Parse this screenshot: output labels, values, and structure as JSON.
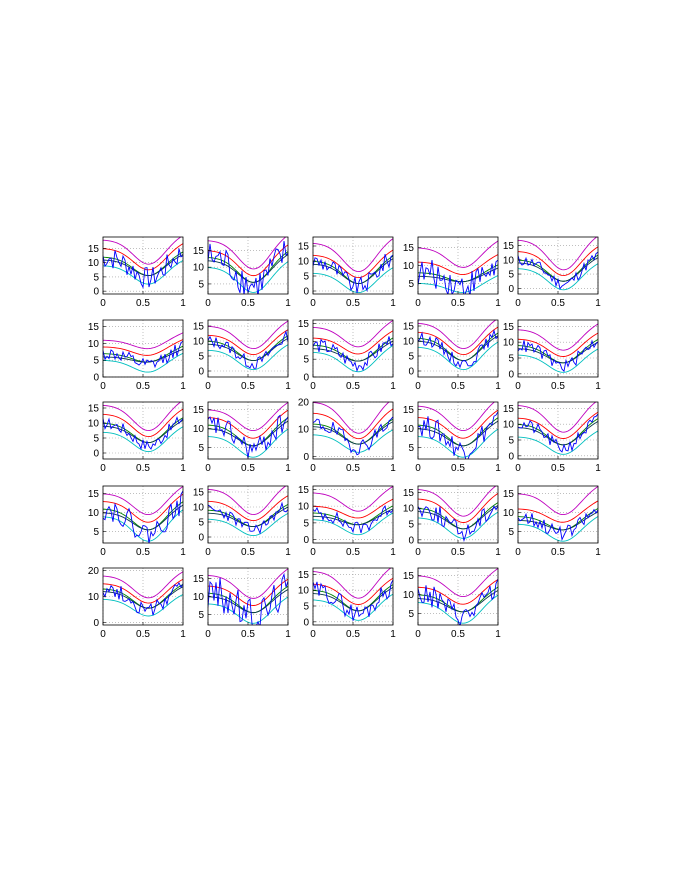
{
  "chart_data": {
    "type": "line",
    "panel_count": 24,
    "columns": 5,
    "xlim": [
      0,
      1
    ],
    "xticks": [
      0,
      0.5,
      1
    ],
    "xtick_labels": [
      "0",
      "0.5",
      "1"
    ],
    "x_shown_only_on": [
      0,
      1,
      2,
      3,
      4,
      5,
      6,
      7,
      8,
      9,
      10,
      11,
      12,
      13,
      14,
      15,
      16,
      17,
      18,
      19,
      20,
      21,
      22,
      23
    ],
    "grid": true,
    "series_colors": {
      "data": "#0000ff",
      "curve_a": "#00bfbf",
      "curve_b": "#008000",
      "curve_c": "#ff0000",
      "curve_d": "#bf00bf",
      "curve_e": "#0a3a4a"
    },
    "panels": [
      {
        "ylim": [
          -1,
          19
        ],
        "yticks": [
          "0",
          "5",
          "10",
          "15"
        ],
        "yvals": [
          0,
          5,
          10,
          15
        ],
        "base": [
          10,
          12,
          15,
          18
        ],
        "min": 3,
        "noise": 4
      },
      {
        "ylim": [
          2,
          19
        ],
        "yticks": [
          "5",
          "10",
          "15"
        ],
        "yvals": [
          5,
          10,
          15
        ],
        "base": [
          11,
          13,
          15,
          18
        ],
        "min": 3,
        "noise": 5
      },
      {
        "ylim": [
          -1,
          18
        ],
        "yticks": [
          "0",
          "5",
          "10",
          "15"
        ],
        "yvals": [
          0,
          5,
          10,
          15
        ],
        "base": [
          7,
          10,
          12,
          16
        ],
        "min": 0,
        "noise": 3
      },
      {
        "ylim": [
          2,
          18
        ],
        "yticks": [
          "5",
          "10",
          "15"
        ],
        "yvals": [
          5,
          10,
          15
        ],
        "base": [
          6,
          8,
          11,
          15
        ],
        "min": 3,
        "noise": 4
      },
      {
        "ylim": [
          -2,
          18
        ],
        "yticks": [
          "0",
          "5",
          "10",
          "15"
        ],
        "yvals": [
          0,
          5,
          10,
          15
        ],
        "base": [
          8,
          10,
          13,
          17
        ],
        "min": 0,
        "noise": 2
      },
      {
        "ylim": [
          0,
          17
        ],
        "yticks": [
          "0",
          "5",
          "10",
          "15"
        ],
        "yvals": [
          0,
          5,
          10,
          15
        ],
        "base": [
          6,
          7,
          9,
          11
        ],
        "min": 2,
        "noise": 2
      },
      {
        "ylim": [
          -2,
          17
        ],
        "yticks": [
          "0",
          "5",
          "10",
          "15"
        ],
        "yvals": [
          0,
          5,
          10,
          15
        ],
        "base": [
          8,
          10,
          12,
          15
        ],
        "min": 1,
        "noise": 2
      },
      {
        "ylim": [
          0,
          16
        ],
        "yticks": [
          "0",
          "5",
          "10",
          "15"
        ],
        "yvals": [
          0,
          5,
          10,
          15
        ],
        "base": [
          8,
          9,
          11,
          14
        ],
        "min": 2,
        "noise": 2
      },
      {
        "ylim": [
          -2,
          17
        ],
        "yticks": [
          "0",
          "5",
          "10",
          "15"
        ],
        "yvals": [
          0,
          5,
          10,
          15
        ],
        "base": [
          9,
          11,
          13,
          16
        ],
        "min": 1,
        "noise": 2
      },
      {
        "ylim": [
          -1,
          17
        ],
        "yticks": [
          "0",
          "5",
          "10",
          "15"
        ],
        "yvals": [
          0,
          5,
          10,
          15
        ],
        "base": [
          7,
          9,
          11,
          14
        ],
        "min": 1,
        "noise": 2
      },
      {
        "ylim": [
          -2,
          17
        ],
        "yticks": [
          "0",
          "5",
          "10",
          "15"
        ],
        "yvals": [
          0,
          5,
          10,
          15
        ],
        "base": [
          8,
          10,
          13,
          16
        ],
        "min": 1,
        "noise": 2
      },
      {
        "ylim": [
          2,
          17
        ],
        "yticks": [
          "5",
          "10",
          "15"
        ],
        "yvals": [
          5,
          10,
          15
        ],
        "base": [
          9,
          11,
          13,
          15
        ],
        "min": 3,
        "noise": 3
      },
      {
        "ylim": [
          -1,
          20
        ],
        "yticks": [
          "0",
          "10",
          "20"
        ],
        "yvals": [
          0,
          10,
          20
        ],
        "base": [
          9,
          12,
          16,
          20
        ],
        "min": 2,
        "noise": 3
      },
      {
        "ylim": [
          2,
          17
        ],
        "yticks": [
          "5",
          "10",
          "15"
        ],
        "yvals": [
          5,
          10,
          15
        ],
        "base": [
          9,
          11,
          13,
          16
        ],
        "min": 3,
        "noise": 3
      },
      {
        "ylim": [
          -1,
          17
        ],
        "yticks": [
          "0",
          "5",
          "10",
          "15"
        ],
        "yvals": [
          0,
          5,
          10,
          15
        ],
        "base": [
          7,
          10,
          12,
          16
        ],
        "min": 1,
        "noise": 2
      },
      {
        "ylim": [
          2,
          17
        ],
        "yticks": [
          "5",
          "10",
          "15"
        ],
        "yvals": [
          5,
          10,
          15
        ],
        "base": [
          10,
          11,
          13,
          15
        ],
        "min": 3,
        "noise": 3
      },
      {
        "ylim": [
          -2,
          17
        ],
        "yticks": [
          "0",
          "5",
          "10",
          "15"
        ],
        "yvals": [
          0,
          5,
          10,
          15
        ],
        "base": [
          7,
          9,
          12,
          16
        ],
        "min": 1,
        "noise": 2
      },
      {
        "ylim": [
          -1,
          16
        ],
        "yticks": [
          "0",
          "5",
          "10",
          "15"
        ],
        "yvals": [
          0,
          5,
          10,
          15
        ],
        "base": [
          7,
          8,
          10,
          14
        ],
        "min": 2,
        "noise": 2
      },
      {
        "ylim": [
          -1,
          17
        ],
        "yticks": [
          "0",
          "5",
          "10",
          "15"
        ],
        "yvals": [
          0,
          5,
          10,
          15
        ],
        "base": [
          8,
          10,
          13,
          16
        ],
        "min": 1,
        "noise": 3
      },
      {
        "ylim": [
          2,
          17
        ],
        "yticks": [
          "5",
          "10",
          "15"
        ],
        "yvals": [
          5,
          10,
          15
        ],
        "base": [
          8,
          9,
          11,
          15
        ],
        "min": 3,
        "noise": 2
      },
      {
        "ylim": [
          -1,
          21
        ],
        "yticks": [
          "0",
          "10",
          "20"
        ],
        "yvals": [
          0,
          10,
          20
        ],
        "base": [
          10,
          13,
          15,
          18
        ],
        "min": 3,
        "noise": 3
      },
      {
        "ylim": [
          2,
          18
        ],
        "yticks": [
          "5",
          "10",
          "15"
        ],
        "yvals": [
          5,
          10,
          15
        ],
        "base": [
          9,
          11,
          13,
          16
        ],
        "min": 3,
        "noise": 5
      },
      {
        "ylim": [
          -1,
          17
        ],
        "yticks": [
          "0",
          "5",
          "10",
          "15"
        ],
        "yvals": [
          0,
          5,
          10,
          15
        ],
        "base": [
          8,
          10,
          12,
          16
        ],
        "min": 1,
        "noise": 3
      },
      {
        "ylim": [
          2,
          17
        ],
        "yticks": [
          "5",
          "10",
          "15"
        ],
        "yvals": [
          5,
          10,
          15
        ],
        "base": [
          9,
          10,
          12,
          15
        ],
        "min": 3,
        "noise": 3
      }
    ]
  }
}
